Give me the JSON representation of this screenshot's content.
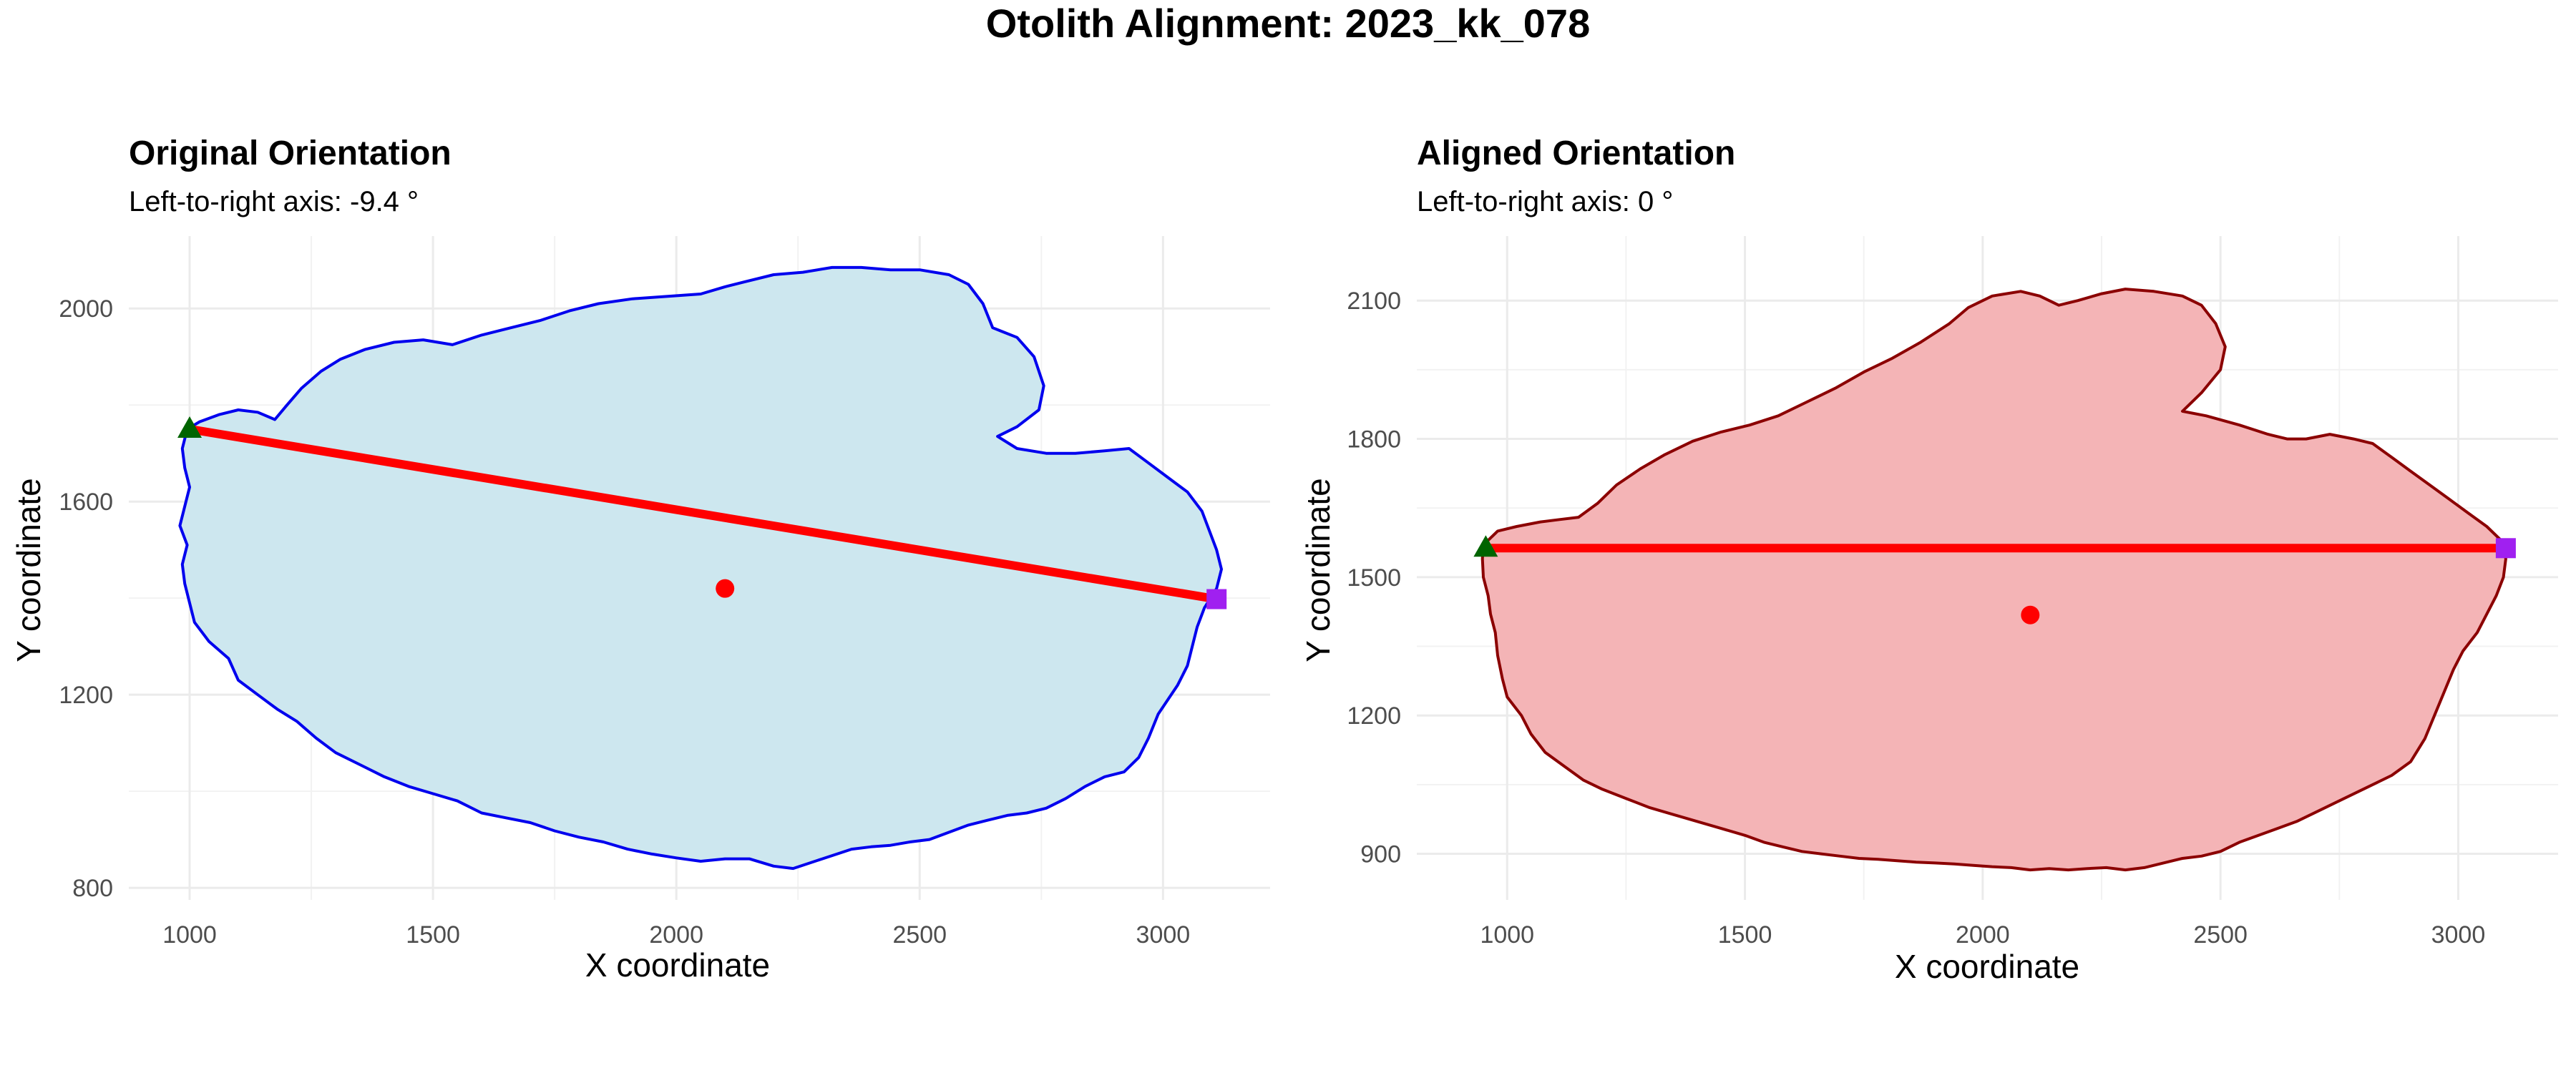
{
  "figure": {
    "title": "Otolith Alignment: 2023_kk_078"
  },
  "chart_data": [
    {
      "type": "area",
      "title": "Original Orientation",
      "subtitle": "Left-to-right axis: -9.4 °",
      "xlabel": "X coordinate",
      "ylabel": "Y coordinate",
      "xlim": [
        875,
        3220
      ],
      "ylim": [
        775,
        2150
      ],
      "xticks": [
        1000,
        1500,
        2000,
        2500,
        3000
      ],
      "yticks": [
        800,
        1200,
        1600,
        2000
      ],
      "xtick_labels": [
        "1000",
        "1500",
        "2000",
        "2500",
        "3000"
      ],
      "ytick_labels": [
        "800",
        "1200",
        "1600",
        "2000"
      ],
      "grid": true,
      "fill_color": "#cde7ef",
      "outline_color": "#0000ee",
      "outline": [
        [
          995,
          1750
        ],
        [
          1020,
          1765
        ],
        [
          1060,
          1780
        ],
        [
          1100,
          1790
        ],
        [
          1140,
          1785
        ],
        [
          1175,
          1770
        ],
        [
          1200,
          1800
        ],
        [
          1230,
          1835
        ],
        [
          1270,
          1870
        ],
        [
          1310,
          1895
        ],
        [
          1360,
          1915
        ],
        [
          1420,
          1930
        ],
        [
          1480,
          1935
        ],
        [
          1540,
          1925
        ],
        [
          1600,
          1945
        ],
        [
          1660,
          1960
        ],
        [
          1720,
          1975
        ],
        [
          1780,
          1995
        ],
        [
          1840,
          2010
        ],
        [
          1910,
          2020
        ],
        [
          1980,
          2025
        ],
        [
          2050,
          2030
        ],
        [
          2100,
          2045
        ],
        [
          2140,
          2055
        ],
        [
          2200,
          2070
        ],
        [
          2260,
          2075
        ],
        [
          2320,
          2085
        ],
        [
          2380,
          2085
        ],
        [
          2440,
          2080
        ],
        [
          2500,
          2080
        ],
        [
          2560,
          2070
        ],
        [
          2600,
          2050
        ],
        [
          2630,
          2010
        ],
        [
          2650,
          1960
        ],
        [
          2700,
          1940
        ],
        [
          2735,
          1900
        ],
        [
          2755,
          1840
        ],
        [
          2745,
          1790
        ],
        [
          2700,
          1755
        ],
        [
          2660,
          1735
        ],
        [
          2700,
          1710
        ],
        [
          2760,
          1700
        ],
        [
          2820,
          1700
        ],
        [
          2880,
          1705
        ],
        [
          2930,
          1710
        ],
        [
          2970,
          1680
        ],
        [
          3010,
          1650
        ],
        [
          3050,
          1620
        ],
        [
          3080,
          1580
        ],
        [
          3095,
          1540
        ],
        [
          3110,
          1500
        ],
        [
          3120,
          1460
        ],
        [
          3110,
          1420
        ],
        [
          3085,
          1380
        ],
        [
          3070,
          1340
        ],
        [
          3060,
          1300
        ],
        [
          3050,
          1260
        ],
        [
          3030,
          1220
        ],
        [
          2990,
          1160
        ],
        [
          2970,
          1110
        ],
        [
          2950,
          1070
        ],
        [
          2920,
          1040
        ],
        [
          2880,
          1030
        ],
        [
          2840,
          1010
        ],
        [
          2800,
          985
        ],
        [
          2760,
          965
        ],
        [
          2720,
          955
        ],
        [
          2680,
          950
        ],
        [
          2640,
          940
        ],
        [
          2600,
          930
        ],
        [
          2560,
          915
        ],
        [
          2520,
          900
        ],
        [
          2480,
          895
        ],
        [
          2440,
          888
        ],
        [
          2400,
          885
        ],
        [
          2360,
          880
        ],
        [
          2300,
          860
        ],
        [
          2240,
          840
        ],
        [
          2200,
          845
        ],
        [
          2150,
          860
        ],
        [
          2100,
          860
        ],
        [
          2050,
          855
        ],
        [
          2000,
          862
        ],
        [
          1950,
          870
        ],
        [
          1900,
          880
        ],
        [
          1850,
          895
        ],
        [
          1800,
          905
        ],
        [
          1750,
          918
        ],
        [
          1700,
          935
        ],
        [
          1650,
          945
        ],
        [
          1600,
          955
        ],
        [
          1550,
          980
        ],
        [
          1500,
          995
        ],
        [
          1450,
          1010
        ],
        [
          1400,
          1030
        ],
        [
          1350,
          1055
        ],
        [
          1300,
          1080
        ],
        [
          1260,
          1110
        ],
        [
          1220,
          1145
        ],
        [
          1180,
          1170
        ],
        [
          1140,
          1200
        ],
        [
          1100,
          1230
        ],
        [
          1080,
          1275
        ],
        [
          1040,
          1310
        ],
        [
          1010,
          1350
        ],
        [
          1000,
          1390
        ],
        [
          990,
          1430
        ],
        [
          985,
          1470
        ],
        [
          995,
          1510
        ],
        [
          980,
          1550
        ],
        [
          990,
          1590
        ],
        [
          1000,
          1630
        ],
        [
          990,
          1670
        ],
        [
          985,
          1710
        ]
      ],
      "axis_line": {
        "start": [
          1000,
          1750
        ],
        "end": [
          3110,
          1398
        ],
        "color": "#ff0000"
      },
      "start_marker": {
        "x": 1000,
        "y": 1750,
        "color": "#006400",
        "shape": "triangle"
      },
      "end_marker": {
        "x": 3110,
        "y": 1398,
        "color": "#a020f0",
        "shape": "square"
      },
      "centroid": {
        "x": 2100,
        "y": 1420,
        "color": "#ff0000"
      }
    },
    {
      "type": "area",
      "title": "Aligned Orientation",
      "subtitle": "Left-to-right axis: 0 °",
      "xlabel": "X coordinate",
      "ylabel": "Y coordinate",
      "xlim": [
        810,
        3210
      ],
      "ylim": [
        800,
        2240
      ],
      "xticks": [
        1000,
        1500,
        2000,
        2500,
        3000
      ],
      "yticks": [
        900,
        1200,
        1500,
        1800,
        2100
      ],
      "xtick_labels": [
        "1000",
        "1500",
        "2000",
        "2500",
        "3000"
      ],
      "ytick_labels": [
        "900",
        "1200",
        "1500",
        "1800",
        "2100"
      ],
      "grid": true,
      "fill_color": "#f4b4b6",
      "outline_color": "#8b0000",
      "outline": [
        [
          950,
          1570
        ],
        [
          980,
          1600
        ],
        [
          1020,
          1610
        ],
        [
          1070,
          1620
        ],
        [
          1110,
          1625
        ],
        [
          1150,
          1630
        ],
        [
          1190,
          1660
        ],
        [
          1230,
          1700
        ],
        [
          1280,
          1735
        ],
        [
          1330,
          1765
        ],
        [
          1390,
          1795
        ],
        [
          1450,
          1815
        ],
        [
          1510,
          1830
        ],
        [
          1570,
          1850
        ],
        [
          1630,
          1880
        ],
        [
          1690,
          1910
        ],
        [
          1750,
          1945
        ],
        [
          1810,
          1975
        ],
        [
          1870,
          2010
        ],
        [
          1930,
          2050
        ],
        [
          1970,
          2085
        ],
        [
          2020,
          2110
        ],
        [
          2080,
          2120
        ],
        [
          2120,
          2110
        ],
        [
          2160,
          2090
        ],
        [
          2200,
          2100
        ],
        [
          2250,
          2115
        ],
        [
          2300,
          2125
        ],
        [
          2360,
          2120
        ],
        [
          2420,
          2110
        ],
        [
          2460,
          2090
        ],
        [
          2490,
          2050
        ],
        [
          2510,
          2000
        ],
        [
          2500,
          1950
        ],
        [
          2460,
          1900
        ],
        [
          2420,
          1860
        ],
        [
          2470,
          1850
        ],
        [
          2540,
          1830
        ],
        [
          2600,
          1810
        ],
        [
          2640,
          1800
        ],
        [
          2680,
          1800
        ],
        [
          2730,
          1810
        ],
        [
          2780,
          1800
        ],
        [
          2820,
          1790
        ],
        [
          2860,
          1760
        ],
        [
          2900,
          1730
        ],
        [
          2940,
          1700
        ],
        [
          2980,
          1670
        ],
        [
          3020,
          1640
        ],
        [
          3060,
          1610
        ],
        [
          3090,
          1580
        ],
        [
          3100,
          1540
        ],
        [
          3095,
          1500
        ],
        [
          3080,
          1460
        ],
        [
          3060,
          1420
        ],
        [
          3040,
          1380
        ],
        [
          3010,
          1340
        ],
        [
          2990,
          1300
        ],
        [
          2970,
          1250
        ],
        [
          2950,
          1200
        ],
        [
          2930,
          1150
        ],
        [
          2900,
          1100
        ],
        [
          2860,
          1070
        ],
        [
          2820,
          1050
        ],
        [
          2780,
          1030
        ],
        [
          2740,
          1010
        ],
        [
          2700,
          990
        ],
        [
          2660,
          970
        ],
        [
          2620,
          955
        ],
        [
          2580,
          940
        ],
        [
          2540,
          925
        ],
        [
          2500,
          905
        ],
        [
          2460,
          895
        ],
        [
          2420,
          890
        ],
        [
          2380,
          880
        ],
        [
          2340,
          870
        ],
        [
          2300,
          865
        ],
        [
          2260,
          870
        ],
        [
          2220,
          868
        ],
        [
          2180,
          865
        ],
        [
          2140,
          868
        ],
        [
          2100,
          865
        ],
        [
          2060,
          870
        ],
        [
          2020,
          872
        ],
        [
          1980,
          875
        ],
        [
          1940,
          878
        ],
        [
          1900,
          880
        ],
        [
          1860,
          882
        ],
        [
          1820,
          885
        ],
        [
          1780,
          888
        ],
        [
          1740,
          890
        ],
        [
          1700,
          895
        ],
        [
          1660,
          900
        ],
        [
          1620,
          905
        ],
        [
          1580,
          915
        ],
        [
          1540,
          925
        ],
        [
          1500,
          940
        ],
        [
          1450,
          955
        ],
        [
          1400,
          970
        ],
        [
          1350,
          985
        ],
        [
          1300,
          1000
        ],
        [
          1250,
          1020
        ],
        [
          1200,
          1040
        ],
        [
          1160,
          1060
        ],
        [
          1120,
          1090
        ],
        [
          1080,
          1120
        ],
        [
          1050,
          1160
        ],
        [
          1030,
          1200
        ],
        [
          1000,
          1240
        ],
        [
          990,
          1280
        ],
        [
          980,
          1330
        ],
        [
          975,
          1380
        ],
        [
          965,
          1420
        ],
        [
          960,
          1460
        ],
        [
          950,
          1500
        ],
        [
          948,
          1540
        ]
      ],
      "axis_line": {
        "start": [
          955,
          1563
        ],
        "end": [
          3100,
          1563
        ],
        "color": "#ff0000"
      },
      "start_marker": {
        "x": 955,
        "y": 1563,
        "color": "#006400",
        "shape": "triangle"
      },
      "end_marker": {
        "x": 3100,
        "y": 1563,
        "color": "#a020f0",
        "shape": "square"
      },
      "centroid": {
        "x": 2100,
        "y": 1418,
        "color": "#ff0000"
      }
    }
  ]
}
